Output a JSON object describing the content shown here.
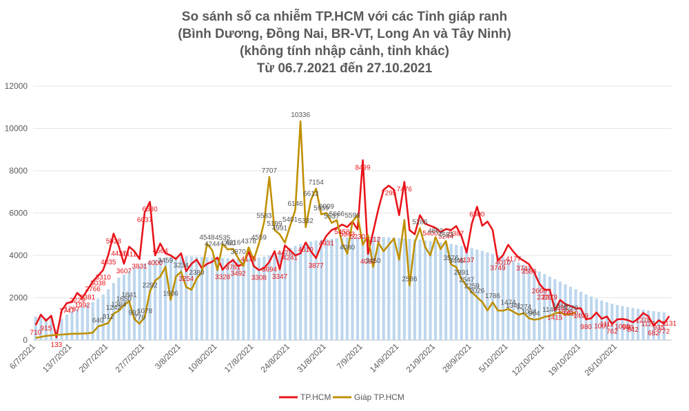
{
  "chart_data": {
    "type": "line",
    "title": [
      "So sánh số ca nhiễm TP.HCM với các Tỉnh giáp ranh",
      "(Bình Dương, Đồng Nai, BR-VT, Long An và Tây Ninh)",
      "(không tính nhập cảnh, tỉnh khác)",
      "Từ 06.7.2021 đến 27.10.2021"
    ],
    "xlabel": "",
    "ylabel": "",
    "ylim": [
      0,
      12000
    ],
    "yticks": [
      0,
      2000,
      4000,
      6000,
      8000,
      10000,
      12000
    ],
    "x_ticks": [
      "6/7/2021",
      "13/7/2021",
      "20/7/2021",
      "27/7/2021",
      "3/8/2021",
      "10/8/2021",
      "17/8/2021",
      "24/8/2021",
      "31/8/2021",
      "7/9/2021",
      "14/9/2021",
      "21/9/2021",
      "28/9/2021",
      "5/10/2021",
      "12/10/2021",
      "19/10/2021",
      "26/10/2021"
    ],
    "grid": "horizontal",
    "legend": "bottom",
    "colors": {
      "series_a": "#e8141a",
      "series_b": "#bf9000",
      "bars": "#bdd7ee"
    },
    "series": [
      {
        "name": "TP.HCM",
        "values": [
          710,
          1200,
          915,
          1150,
          133,
          1400,
          1747,
          1797,
          2229,
          1992,
          2381,
          2766,
          3038,
          3310,
          4035,
          5028,
          4437,
          3607,
          4411,
          4200,
          3831,
          6037,
          6530,
          4000,
          4564,
          4100,
          4000,
          3829,
          4100,
          3254,
          3600,
          3800,
          3400,
          3600,
          3700,
          3900,
          3328,
          3600,
          3781,
          3492,
          3600,
          4175,
          3500,
          3308,
          3400,
          3694,
          4200,
          3347,
          4470,
          4241,
          4000,
          4100,
          4610,
          4200,
          3877,
          4500,
          4931,
          5200,
          5300,
          5458,
          5343,
          5600,
          5230,
          8499,
          4067,
          5112,
          6200,
          7100,
          7295,
          7100,
          5900,
          7476,
          5200,
          5000,
          5900,
          5500,
          5400,
          5300,
          5100,
          5244,
          5200,
          5387,
          4900,
          4137,
          5500,
          6300,
          5400,
          5600,
          5200,
          3749,
          4010,
          4500,
          4177,
          3900,
          3747,
          3586,
          3200,
          2660,
          2370,
          2379,
          1415,
          1894,
          1696,
          1610,
          1500,
          1499,
          980,
          1030,
          1300,
          1007,
          1111,
          762,
          980,
          1000,
          949,
          842,
          1000,
          1278,
          1121,
          682,
          935,
          772,
          1131
        ]
      },
      {
        "name": "Giáp TP.HCM",
        "values": [
          100,
          150,
          200,
          220,
          250,
          260,
          280,
          300,
          300,
          310,
          320,
          350,
          640,
          720,
          812,
          1242,
          1384,
          1650,
          1841,
          992,
          776,
          1078,
          2292,
          2800,
          3000,
          3459,
          1906,
          3000,
          3234,
          2500,
          2380,
          2900,
          3200,
          4548,
          4244,
          3300,
          4535,
          4280,
          4316,
          3870,
          3500,
          4378,
          3800,
          4559,
          5583,
          7707,
          5199,
          4991,
          4600,
          5401,
          6146,
          10336,
          5332,
          6613,
          7154,
          5939,
          6009,
          5537,
          5666,
          4600,
          4080,
          5596,
          5900,
          4500,
          4952,
          3450,
          4600,
          4200,
          4500,
          4800,
          3800,
          5671,
          2586,
          4600,
          5286,
          4400,
          4000,
          4863,
          4300,
          4683,
          3576,
          3445,
          2891,
          2547,
          2259,
          2026,
          1800,
          1400,
          1786,
          1400,
          1390,
          1474,
          1341,
          1200,
          1274,
          1034,
          964,
          1000,
          1100,
          1140,
          1260,
          1318,
          1200,
          1220,
          1320
        ]
      }
    ],
    "bars_values": [
      1110,
      1100,
      1050,
      1080,
      500,
      1000,
      1200,
      1350,
      1480,
      1610,
      1700,
      1800,
      1950,
      2150,
      2400,
      2700,
      2950,
      3100,
      3250,
      3400,
      3500,
      3620,
      3720,
      3800,
      3850,
      3900,
      3930,
      3950,
      3960,
      3960,
      3950,
      3940,
      3930,
      3920,
      3900,
      3890,
      3880,
      3870,
      3860,
      3850,
      3850,
      3860,
      3880,
      3900,
      3940,
      4000,
      4080,
      4170,
      4260,
      4360,
      4450,
      4530,
      4600,
      4660,
      4700,
      4740,
      4770,
      4790,
      4810,
      4830,
      4850,
      4860,
      4870,
      4880,
      4880,
      4880,
      4880,
      4870,
      4860,
      4840,
      4820,
      4800,
      4780,
      4760,
      4740,
      4710,
      4680,
      4650,
      4620,
      4580,
      4540,
      4500,
      4450,
      4400,
      4340,
      4280,
      4220,
      4150,
      4080,
      4000,
      3920,
      3840,
      3750,
      3660,
      3560,
      3460,
      3350,
      3240,
      3120,
      3000,
      2880,
      2760,
      2640,
      2520,
      2400,
      2280,
      2160,
      2060,
      1960,
      1870,
      1790,
      1720,
      1660,
      1610,
      1560,
      1520,
      1480,
      1440,
      1400,
      1370,
      1340,
      1310
    ],
    "data_labels": {
      "series_a": [
        {
          "i": 0,
          "v": "710"
        },
        {
          "i": 2,
          "v": "915"
        },
        {
          "i": 4,
          "v": "133"
        },
        {
          "i": 6,
          "v": "1747"
        },
        {
          "i": 7,
          "v": "1797"
        },
        {
          "i": 8,
          "v": "2229"
        },
        {
          "i": 9,
          "v": "1992"
        },
        {
          "i": 10,
          "v": "2381"
        },
        {
          "i": 11,
          "v": "2766"
        },
        {
          "i": 12,
          "v": "3038"
        },
        {
          "i": 13,
          "v": "3310"
        },
        {
          "i": 14,
          "v": "4035"
        },
        {
          "i": 15,
          "v": "5028"
        },
        {
          "i": 16,
          "v": "4437"
        },
        {
          "i": 17,
          "v": "3607"
        },
        {
          "i": 18,
          "v": "4411"
        },
        {
          "i": 20,
          "v": "3831"
        },
        {
          "i": 21,
          "v": "6037"
        },
        {
          "i": 22,
          "v": "6530"
        },
        {
          "i": 23,
          "v": "4000"
        },
        {
          "i": 24,
          "v": "4564"
        },
        {
          "i": 29,
          "v": "3254"
        },
        {
          "i": 36,
          "v": "3328"
        },
        {
          "i": 38,
          "v": "3781"
        },
        {
          "i": 39,
          "v": "3492"
        },
        {
          "i": 41,
          "v": "4175"
        },
        {
          "i": 43,
          "v": "3308"
        },
        {
          "i": 45,
          "v": "3694"
        },
        {
          "i": 47,
          "v": "3347"
        },
        {
          "i": 48,
          "v": "4470"
        },
        {
          "i": 49,
          "v": "4241"
        },
        {
          "i": 52,
          "v": "4610"
        },
        {
          "i": 54,
          "v": "3877"
        },
        {
          "i": 56,
          "v": "4931"
        },
        {
          "i": 59,
          "v": "5458"
        },
        {
          "i": 60,
          "v": "5343"
        },
        {
          "i": 62,
          "v": "5230"
        },
        {
          "i": 63,
          "v": "8499"
        },
        {
          "i": 64,
          "v": "4067"
        },
        {
          "i": 65,
          "v": "5112"
        },
        {
          "i": 68,
          "v": "7295"
        },
        {
          "i": 71,
          "v": "7476"
        },
        {
          "i": 76,
          "v": "5400"
        },
        {
          "i": 79,
          "v": "5244"
        },
        {
          "i": 81,
          "v": "5387"
        },
        {
          "i": 83,
          "v": "4137"
        },
        {
          "i": 85,
          "v": "6300"
        },
        {
          "i": 89,
          "v": "3749"
        },
        {
          "i": 90,
          "v": "4010"
        },
        {
          "i": 92,
          "v": "4177"
        },
        {
          "i": 94,
          "v": "3747"
        },
        {
          "i": 95,
          "v": "3586"
        },
        {
          "i": 97,
          "v": "2660"
        },
        {
          "i": 98,
          "v": "2370"
        },
        {
          "i": 99,
          "v": "2379"
        },
        {
          "i": 100,
          "v": "1415"
        },
        {
          "i": 101,
          "v": "1894"
        },
        {
          "i": 102,
          "v": "1696"
        },
        {
          "i": 103,
          "v": "1610"
        },
        {
          "i": 105,
          "v": "1499"
        },
        {
          "i": 106,
          "v": "980"
        },
        {
          "i": 109,
          "v": "1007"
        },
        {
          "i": 110,
          "v": "1111"
        },
        {
          "i": 111,
          "v": "762"
        },
        {
          "i": 113,
          "v": "1000"
        },
        {
          "i": 114,
          "v": "949"
        },
        {
          "i": 115,
          "v": "842"
        },
        {
          "i": 117,
          "v": "1278"
        },
        {
          "i": 118,
          "v": "1121"
        },
        {
          "i": 119,
          "v": "682"
        },
        {
          "i": 120,
          "v": "935"
        },
        {
          "i": 121,
          "v": "772"
        },
        {
          "i": 122,
          "v": "1131"
        }
      ],
      "series_b": [
        {
          "i": 12,
          "v": "640"
        },
        {
          "i": 14,
          "v": "812"
        },
        {
          "i": 15,
          "v": "1242"
        },
        {
          "i": 16,
          "v": "1384"
        },
        {
          "i": 17,
          "v": "1650"
        },
        {
          "i": 18,
          "v": "1841"
        },
        {
          "i": 19,
          "v": "992"
        },
        {
          "i": 20,
          "v": "776"
        },
        {
          "i": 21,
          "v": "1078"
        },
        {
          "i": 22,
          "v": "2292"
        },
        {
          "i": 25,
          "v": "3459"
        },
        {
          "i": 26,
          "v": "1906"
        },
        {
          "i": 28,
          "v": "3234"
        },
        {
          "i": 31,
          "v": "2380"
        },
        {
          "i": 33,
          "v": "4548"
        },
        {
          "i": 34,
          "v": "4244"
        },
        {
          "i": 36,
          "v": "4535"
        },
        {
          "i": 37,
          "v": "4280"
        },
        {
          "i": 38,
          "v": "4316"
        },
        {
          "i": 39,
          "v": "3870"
        },
        {
          "i": 41,
          "v": "4378"
        },
        {
          "i": 43,
          "v": "4559"
        },
        {
          "i": 44,
          "v": "5583"
        },
        {
          "i": 45,
          "v": "7707"
        },
        {
          "i": 46,
          "v": "5199"
        },
        {
          "i": 47,
          "v": "4991"
        },
        {
          "i": 49,
          "v": "5401"
        },
        {
          "i": 50,
          "v": "6146"
        },
        {
          "i": 51,
          "v": "10336"
        },
        {
          "i": 52,
          "v": "5332"
        },
        {
          "i": 53,
          "v": "6613"
        },
        {
          "i": 54,
          "v": "7154"
        },
        {
          "i": 55,
          "v": "5939"
        },
        {
          "i": 56,
          "v": "6009"
        },
        {
          "i": 57,
          "v": "5537"
        },
        {
          "i": 58,
          "v": "5666"
        },
        {
          "i": 60,
          "v": "4080"
        },
        {
          "i": 61,
          "v": "5596"
        },
        {
          "i": 65,
          "v": "3450"
        },
        {
          "i": 72,
          "v": "2586"
        },
        {
          "i": 74,
          "v": "5286"
        },
        {
          "i": 77,
          "v": "4863"
        },
        {
          "i": 79,
          "v": "4683"
        },
        {
          "i": 80,
          "v": "3576"
        },
        {
          "i": 81,
          "v": "3445"
        },
        {
          "i": 82,
          "v": "2891"
        },
        {
          "i": 83,
          "v": "2547"
        },
        {
          "i": 84,
          "v": "2259"
        },
        {
          "i": 85,
          "v": "2026"
        },
        {
          "i": 88,
          "v": "1786"
        },
        {
          "i": 91,
          "v": "1474"
        },
        {
          "i": 92,
          "v": "1341"
        },
        {
          "i": 94,
          "v": "1274"
        },
        {
          "i": 95,
          "v": "1034"
        },
        {
          "i": 96,
          "v": "964"
        },
        {
          "i": 99,
          "v": "1140"
        },
        {
          "i": 101,
          "v": "1318"
        },
        {
          "i": 103,
          "v": "1220"
        }
      ]
    }
  }
}
